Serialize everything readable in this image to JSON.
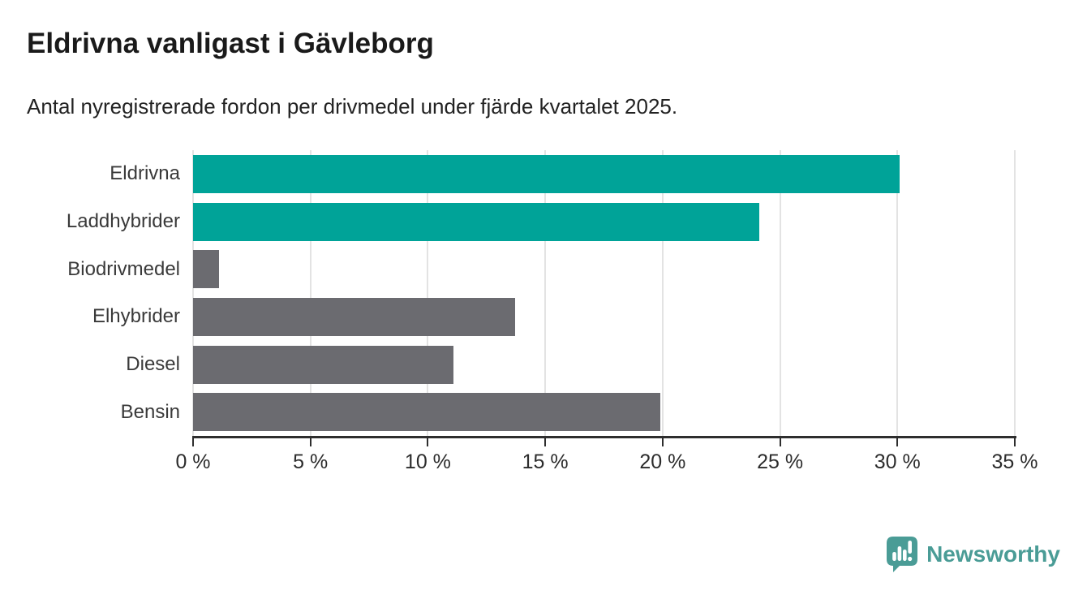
{
  "header": {
    "title": "Eldrivna vanligast i Gävleborg",
    "subtitle": "Antal nyregistrerade fordon per drivmedel under fjärde kvartalet 2025."
  },
  "chart_data": {
    "type": "bar",
    "orientation": "horizontal",
    "title": "Eldrivna vanligast i Gävleborg",
    "subtitle": "Antal nyregistrerade fordon per drivmedel under fjärde kvartalet 2025.",
    "categories": [
      "Eldrivna",
      "Laddhybrider",
      "Biodrivmedel",
      "Elhybrider",
      "Diesel",
      "Bensin"
    ],
    "values": [
      30.1,
      24.1,
      1.1,
      13.7,
      11.1,
      19.9
    ],
    "unit": "%",
    "bar_colors": [
      "#00a398",
      "#00a398",
      "#6b6b70",
      "#6b6b70",
      "#6b6b70",
      "#6b6b70"
    ],
    "highlight_color": "#00a398",
    "default_color": "#6b6b70",
    "xlabel": "",
    "ylabel": "",
    "xlim": [
      0,
      35
    ],
    "x_tick_step": 5,
    "x_tick_labels": [
      "0 %",
      "5 %",
      "10 %",
      "15 %",
      "20 %",
      "25 %",
      "30 %",
      "35 %"
    ],
    "grid": "vertical",
    "grid_color": "#e3e3e3",
    "legend": "none"
  },
  "footer": {
    "brand": "Newsworthy",
    "brand_color": "#4a9c96",
    "logo_icon": "speech-bubble-bar-chart-icon"
  }
}
